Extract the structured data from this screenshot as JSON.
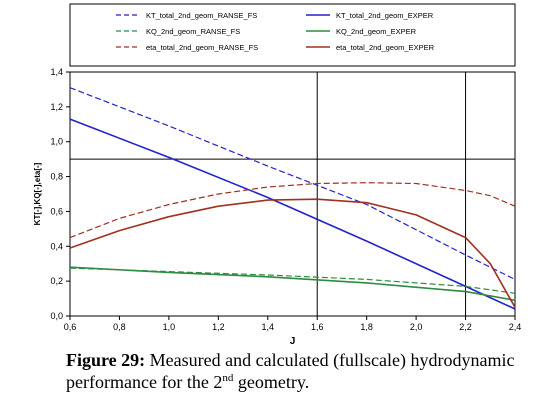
{
  "chart_data": {
    "type": "line",
    "xlabel": "J",
    "ylabel": "KT[-],KQ[-],eta[-]",
    "xlim": [
      0.6,
      2.4
    ],
    "ylim": [
      0.0,
      1.4
    ],
    "x_ticks": [
      "0,6",
      "0,8",
      "1,0",
      "1,2",
      "1,4",
      "1,6",
      "1,8",
      "2,0",
      "2,2",
      "2,4"
    ],
    "y_ticks": [
      "0,0",
      "0,2",
      "0,4",
      "0,6",
      "0,8",
      "1,0",
      "1,2",
      "1,4"
    ],
    "grid": "vertical lines at J=1.6 and J=2.2; horizontal line at 0.9",
    "legend_position": "top",
    "series": [
      {
        "name": "KT_total_2nd_geom_RANSE_FS",
        "color": "#2222cc",
        "dash": "dashed",
        "x": [
          0.6,
          1.0,
          1.4,
          1.8,
          2.2,
          2.4
        ],
        "y": [
          1.31,
          1.09,
          0.86,
          0.64,
          0.35,
          0.21
        ]
      },
      {
        "name": "KT_total_2nd_geom_EXPER",
        "color": "#2222cc",
        "dash": "solid",
        "x": [
          0.6,
          1.0,
          1.4,
          1.8,
          2.2,
          2.4
        ],
        "y": [
          1.13,
          0.91,
          0.68,
          0.43,
          0.17,
          0.04
        ]
      },
      {
        "name": "KQ_2nd_geom_RANSE_FS",
        "color": "#2e8b40",
        "dash": "dashed",
        "x": [
          0.6,
          1.0,
          1.4,
          1.8,
          2.2,
          2.4
        ],
        "y": [
          0.275,
          0.255,
          0.235,
          0.21,
          0.17,
          0.13
        ]
      },
      {
        "name": "KQ_2nd_geom_EXPER",
        "color": "#2e8b40",
        "dash": "solid",
        "x": [
          0.6,
          1.0,
          1.4,
          1.8,
          2.2,
          2.4
        ],
        "y": [
          0.28,
          0.25,
          0.225,
          0.19,
          0.14,
          0.09
        ]
      },
      {
        "name": "eta_total_2nd_geom_RANSE_FS",
        "color": "#a03020",
        "dash": "dashed",
        "x": [
          0.6,
          0.8,
          1.0,
          1.2,
          1.4,
          1.6,
          1.8,
          2.0,
          2.2,
          2.3,
          2.4
        ],
        "y": [
          0.45,
          0.56,
          0.64,
          0.7,
          0.74,
          0.76,
          0.765,
          0.76,
          0.72,
          0.69,
          0.63
        ]
      },
      {
        "name": "eta_total_2nd_geom_EXPER",
        "color": "#a03020",
        "dash": "solid",
        "x": [
          0.6,
          0.8,
          1.0,
          1.2,
          1.4,
          1.6,
          1.8,
          2.0,
          2.2,
          2.3,
          2.4
        ],
        "y": [
          0.39,
          0.49,
          0.57,
          0.63,
          0.665,
          0.67,
          0.65,
          0.58,
          0.45,
          0.3,
          0.05
        ]
      }
    ]
  },
  "caption": {
    "label": "Figure 29:",
    "text_before_sup": " Measured and calculated (fullscale) hydrodynamic performance for the 2",
    "sup": "nd",
    "text_after_sup": " geometry."
  }
}
